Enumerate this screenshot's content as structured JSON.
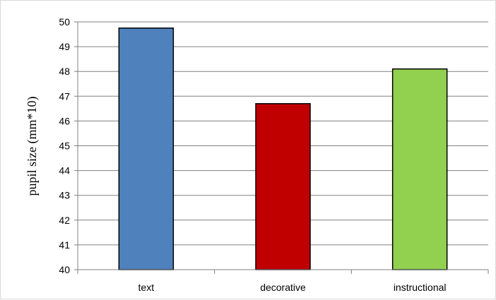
{
  "chart_data": {
    "type": "bar",
    "title": "",
    "xlabel": "",
    "ylabel": "pupil size (mm*10)",
    "categories": [
      "text",
      "decorative",
      "instructional"
    ],
    "values": [
      49.75,
      46.7,
      48.1
    ],
    "colors": [
      "#4f81bd",
      "#c00000",
      "#92d050"
    ],
    "ylim": [
      40,
      50
    ],
    "yticks": [
      40,
      41,
      42,
      43,
      44,
      45,
      46,
      47,
      48,
      49,
      50
    ],
    "grid": true,
    "legend": "none"
  }
}
